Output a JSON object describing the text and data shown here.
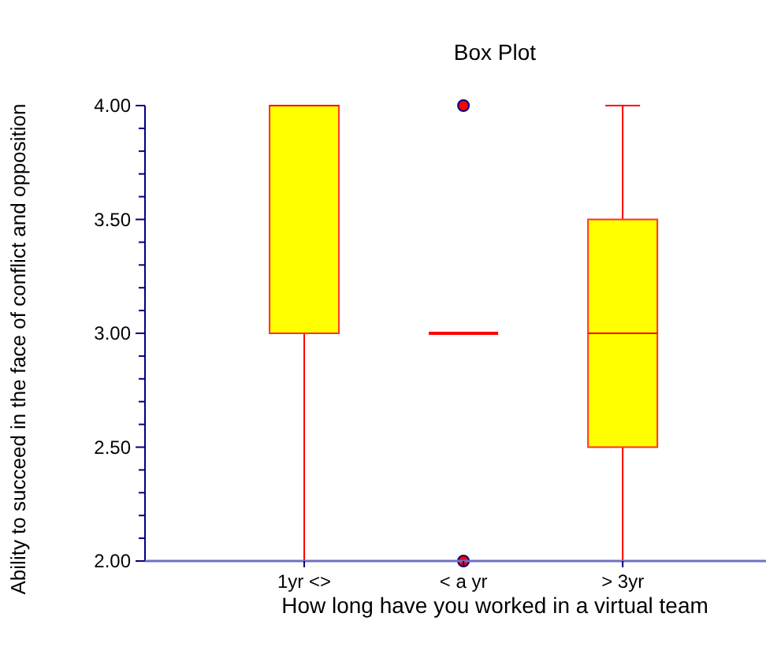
{
  "chart_data": {
    "type": "box",
    "title": "Box Plot",
    "xlabel": "How long have you worked in a virtual team",
    "ylabel": "Ability to succeed in the face of conflict and opposition",
    "categories": [
      "1yr <>",
      "< a yr",
      "> 3yr"
    ],
    "boxes": [
      {
        "low": 2,
        "q1": 3,
        "median": 4,
        "q3": 4,
        "high": 4
      },
      {
        "low": 3,
        "q1": 3,
        "median": 3,
        "q3": 3,
        "high": 3,
        "outliers": [
          4,
          2
        ]
      },
      {
        "low": 2,
        "q1": 2.5,
        "median": 3,
        "q3": 3.5,
        "high": 4
      }
    ],
    "colors": [
      "#ffff00",
      "#ff0000",
      "#ffff00"
    ],
    "ylim": [
      2,
      4
    ],
    "yticks": [
      {
        "value": 2,
        "label": "2.00"
      },
      {
        "value": 2.1,
        "label": null
      },
      {
        "value": 2.2,
        "label": null
      },
      {
        "value": 2.3,
        "label": null
      },
      {
        "value": 2.4,
        "label": null
      },
      {
        "value": 2.5,
        "label": "2.50"
      },
      {
        "value": 2.6,
        "label": null
      },
      {
        "value": 2.7,
        "label": null
      },
      {
        "value": 2.8,
        "label": null
      },
      {
        "value": 2.9,
        "label": null
      },
      {
        "value": 3,
        "label": "3.00"
      },
      {
        "value": 3.1,
        "label": null
      },
      {
        "value": 3.2,
        "label": null
      },
      {
        "value": 3.3,
        "label": null
      },
      {
        "value": 3.4,
        "label": null
      },
      {
        "value": 3.5,
        "label": "3.50"
      },
      {
        "value": 3.6,
        "label": null
      },
      {
        "value": 3.7,
        "label": null
      },
      {
        "value": 3.8,
        "label": null
      },
      {
        "value": 3.9,
        "label": null
      },
      {
        "value": 4,
        "label": "4.00"
      }
    ],
    "grid": false
  }
}
